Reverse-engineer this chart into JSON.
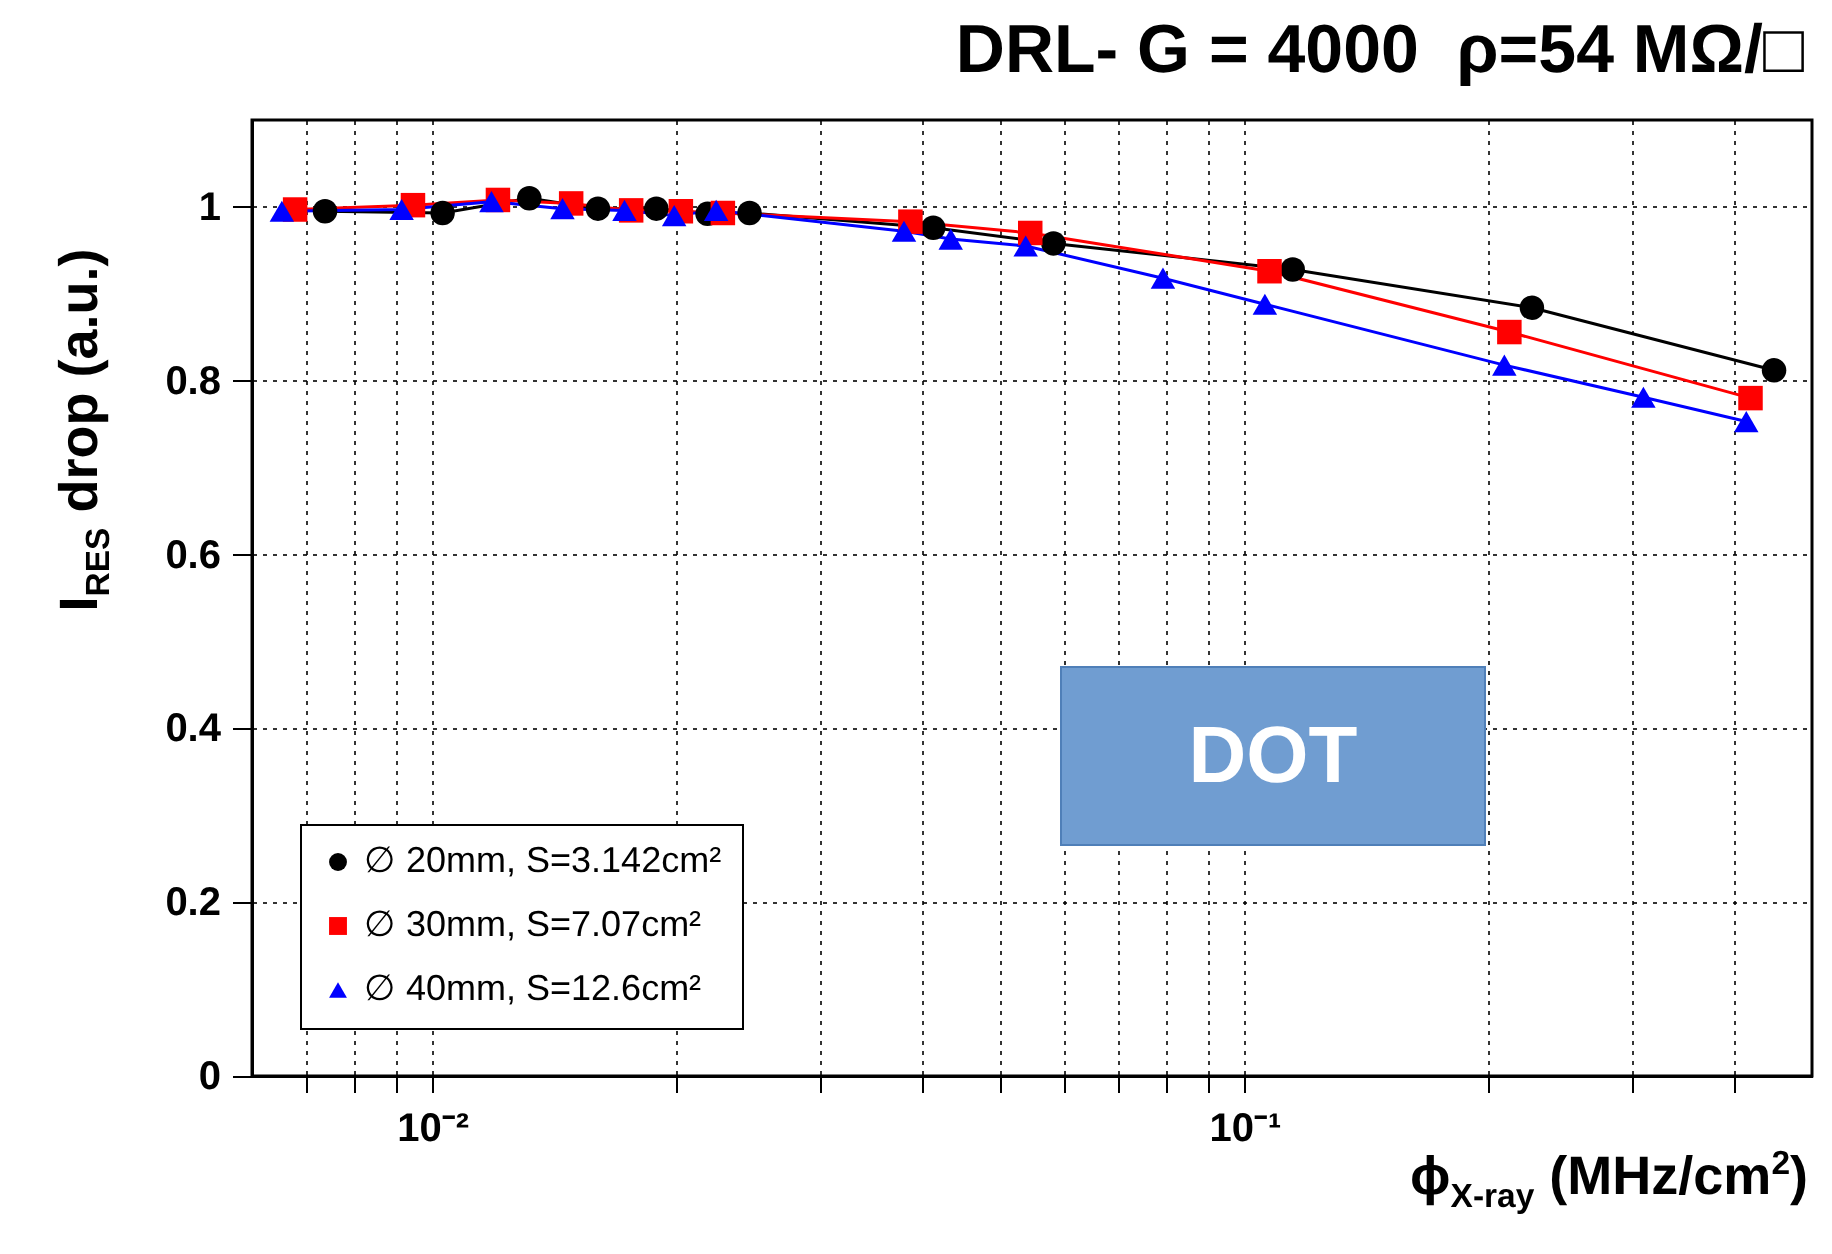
{
  "chart_data": {
    "type": "line",
    "title": "DRL- G = 4000  ρ=54 MΩ/□",
    "xlabel": "ϕ$_{X-ray}$ (MHz/cm$^{2}$)",
    "ylabel": "I$_{RES}$ drop (a.u.)",
    "annotations": [
      "DOT"
    ],
    "log": "x",
    "xlim": [
      0.006,
      0.5
    ],
    "ylim": [
      0,
      1.1
    ],
    "xticks": [
      {
        "value": 0.007,
        "label": null
      },
      {
        "value": 0.008,
        "label": null
      },
      {
        "value": 0.009,
        "label": null
      },
      {
        "value": 0.01,
        "label": "10⁻²"
      },
      {
        "value": 0.02,
        "label": null
      },
      {
        "value": 0.03,
        "label": null
      },
      {
        "value": 0.04,
        "label": null
      },
      {
        "value": 0.05,
        "label": null
      },
      {
        "value": 0.06,
        "label": null
      },
      {
        "value": 0.07,
        "label": null
      },
      {
        "value": 0.08,
        "label": null
      },
      {
        "value": 0.09,
        "label": null
      },
      {
        "value": 0.1,
        "label": "10⁻¹"
      },
      {
        "value": 0.2,
        "label": null
      },
      {
        "value": 0.3,
        "label": null
      },
      {
        "value": 0.4,
        "label": null
      }
    ],
    "yticks": [
      0,
      0.2,
      0.4,
      0.6,
      0.8,
      1
    ],
    "grid": true,
    "legend": "bottom left",
    "line_style": "solid",
    "series": [
      {
        "name": "∅ 20mm, S=3.142cm²",
        "color": "#000000",
        "marker": "circle",
        "x": [
          0.00738,
          0.0103,
          0.01317,
          0.016,
          0.01888,
          0.02183,
          0.02459,
          0.0414,
          0.0582,
          0.1147,
          0.226,
          0.449
        ],
        "values": [
          0.995,
          0.993,
          1.01,
          0.998,
          0.998,
          0.992,
          0.993,
          0.976,
          0.958,
          0.928,
          0.884,
          0.812
        ]
      },
      {
        "name": "∅ 30mm, S=7.07cm²",
        "color": "#ff0000",
        "marker": "square",
        "x": [
          0.00678,
          0.00947,
          0.01205,
          0.01483,
          0.01758,
          0.02024,
          0.0228,
          0.0388,
          0.0545,
          0.1074,
          0.212,
          0.42
        ],
        "values": [
          0.997,
          1.002,
          1.008,
          1.004,
          0.996,
          0.995,
          0.993,
          0.983,
          0.97,
          0.926,
          0.856,
          0.78
        ]
      },
      {
        "name": "∅ 40mm, S=12.6cm²",
        "color": "#0000ff",
        "marker": "triangle",
        "x": [
          0.00653,
          0.00917,
          0.01183,
          0.01447,
          0.01725,
          0.01986,
          0.02237,
          0.0381,
          0.0435,
          0.0538,
          0.0794,
          0.106,
          0.209,
          0.31,
          0.415
        ],
        "values": [
          0.995,
          0.997,
          1.006,
          0.998,
          0.996,
          0.99,
          0.996,
          0.972,
          0.963,
          0.955,
          0.918,
          0.888,
          0.818,
          0.781,
          0.753
        ]
      }
    ]
  }
}
